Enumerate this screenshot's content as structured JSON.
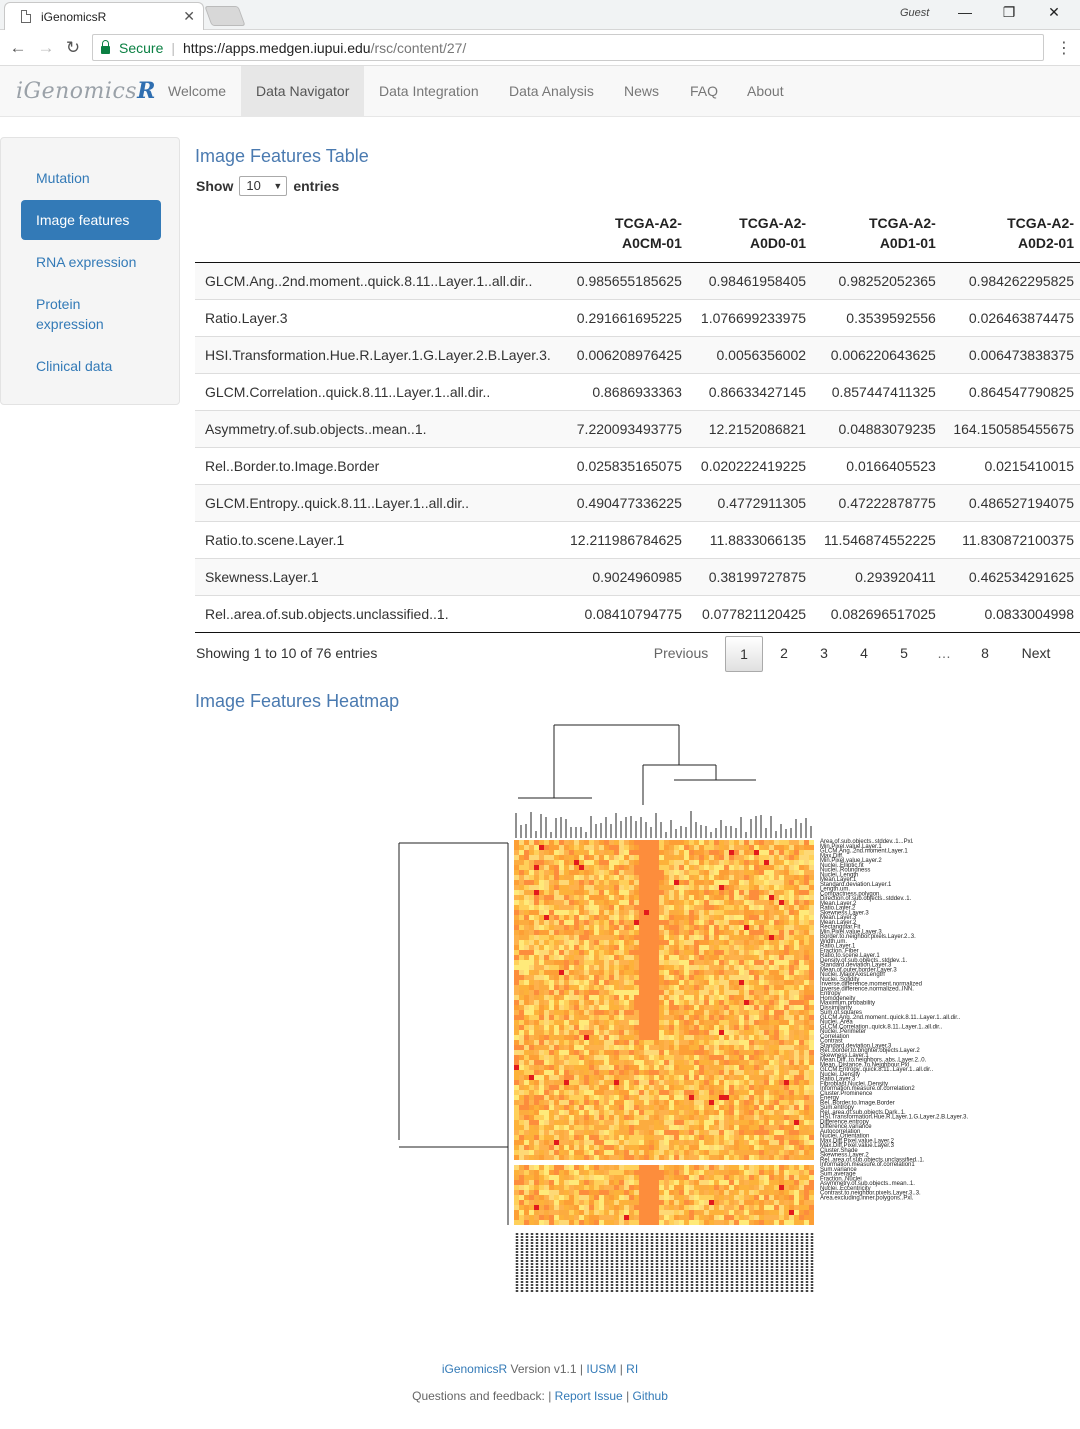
{
  "browser": {
    "tab_title": "iGenomicsR",
    "tab_close": "✕",
    "profile": "Guest",
    "win_min": "—",
    "win_max": "❐",
    "win_close": "✕",
    "back": "←",
    "forward": "→",
    "reload": "↻",
    "secure_label": "Secure",
    "url_host": "https://apps.medgen.iupui.edu",
    "url_path": "/rsc/content/27/",
    "menu": "⋮"
  },
  "navbar": {
    "brand_main": "iGenomics",
    "brand_r": "R",
    "items": [
      "Welcome",
      "Data Navigator",
      "Data Integration",
      "Data Analysis",
      "News",
      "FAQ",
      "About"
    ],
    "active": "Data Navigator"
  },
  "sidebar": {
    "items": [
      "Mutation",
      "Image features",
      "RNA expression",
      "Protein expression",
      "Clinical data"
    ],
    "active": "Image features"
  },
  "table_section": {
    "title": "Image Features Table",
    "show_label": "Show",
    "entries_value": "10",
    "entries_label": "entries",
    "columns": [
      "",
      "TCGA-A2-\nA0CM-01",
      "TCGA-A2-\nA0D0-01",
      "TCGA-A2-\nA0D1-01",
      "TCGA-A2-\nA0D2-01"
    ],
    "rows": [
      [
        "GLCM.Ang..2nd.moment..quick.8.11..Layer.1..all.dir..",
        "0.985655185625",
        "0.98461958405",
        "0.98252052365",
        "0.984262295825"
      ],
      [
        "Ratio.Layer.3",
        "0.291661695225",
        "1.076699233975",
        "0.3539592556",
        "0.026463874475"
      ],
      [
        "HSI.Transformation.Hue.R.Layer.1.G.Layer.2.B.Layer.3.",
        "0.006208976425",
        "0.0056356002",
        "0.006220643625",
        "0.006473838375"
      ],
      [
        "GLCM.Correlation..quick.8.11..Layer.1..all.dir..",
        "0.8686933363",
        "0.86633427145",
        "0.857447411325",
        "0.864547790825"
      ],
      [
        "Asymmetry.of.sub.objects..mean..1.",
        "7.220093493775",
        "12.2152086821",
        "0.04883079235",
        "164.150585455675"
      ],
      [
        "Rel..Border.to.Image.Border",
        "0.025835165075",
        "0.020222419225",
        "0.0166405523",
        "0.0215410015"
      ],
      [
        "GLCM.Entropy..quick.8.11..Layer.1..all.dir..",
        "0.490477336225",
        "0.4772911305",
        "0.47222878775",
        "0.486527194075"
      ],
      [
        "Ratio.to.scene.Layer.1",
        "12.211986784625",
        "11.8833066135",
        "11.546874552225",
        "11.830872100375"
      ],
      [
        "Skewness.Layer.1",
        "0.9024960985",
        "0.38199727875",
        "0.293920411",
        "0.462534291625"
      ],
      [
        "Rel..area.of.sub.objects.unclassified..1.",
        "0.08410794775",
        "0.077821120425",
        "0.082696517025",
        "0.0833004998"
      ]
    ],
    "info": "Showing 1 to 10 of 76 entries",
    "pagination": {
      "previous": "Previous",
      "pages": [
        "1",
        "2",
        "3",
        "4",
        "5",
        "…",
        "8"
      ],
      "next": "Next",
      "current": "1"
    }
  },
  "heatmap_section": {
    "title": "Image Features Heatmap",
    "row_labels": [
      "Area.of.sub.objects..stddev..1...Pxl.",
      "Min.Pixel.value.Layer.1",
      "GLCM.Ang..2nd.moment.Layer.1",
      "Max.Diff.",
      "Min.Pixel.value.Layer.2",
      "Nuclei..Elliptic.fit",
      "Nuclei..Roundness",
      "Nuclei..Length",
      "Mean.Layer.1",
      "Standard.deviation.Layer.1",
      "Length.um.",
      "Compactness.polygon.",
      "Direction.of.sub.objects..stddev..1.",
      "Mean.Layer.2",
      "Ratio.Layer.2",
      "Skewness.Layer.3",
      "Mean.Layer.3",
      "Mean.Layer.2",
      "Rectangular.Fit",
      "Min.Pixel.value.Layer.3",
      "Border.to.neighbor.pixels.Layer.2..3.",
      "Width.um.",
      "Ratio.Layer.1",
      "Fraction..Fiber",
      "Ratio.to.scene.Layer.1",
      "Density.of.sub.objects..stddev..1.",
      "Standard.deviation.Layer.3",
      "Mean.of.outer.border.Layer.3",
      "Nuclei..MajorAxisLength",
      "Nuclei..Solidity",
      "Inverse.difference.moment.normalized",
      "Inverse.difference.normalized..INN.",
      "Entropy",
      "Homogeneity",
      "Maximum.probability",
      "Dissimilarity",
      "Sum.of.squares",
      "GLCM.Ang..2nd.moment..quick.8.11..Layer.1..all.dir..",
      "Nuclei..Area",
      "GLCM.Correlation..quick.8.11..Layer.1..all.dir..",
      "Nuclei..Perimeter",
      "Correlation",
      "Contrast",
      "Standard.deviation.Layer.3",
      "Rel..border.to.brighter.objects.Layer.2",
      "Skewness.Layer.1",
      "Mean.Diff..to.neighbors..abs..Layer.2..0.",
      "Mean..Distance..to.Neighbour.Pxl",
      "GLCM.Entropy..quick.8.11..Layer.1..all.dir..",
      "Nuclei..Density",
      "Ratio.Layer.3",
      "Fibroblast.Nuclei..Density",
      "Information.measure.of.correlation2",
      "Cluster.Prominence",
      "Energy",
      "Rel..Border.to.Image.Border",
      "Sum.entropy",
      "Rel..area.of.sub.objects.Dark..1.",
      "HSI.Transformation.Hue.R.Layer.1.G.Layer.2.B.Layer.3.",
      "Difference.entropy",
      "Difference.variance",
      "Autocorrelation",
      "Nuclei..Orientation",
      "Max.Diff.Pixel.value.Layer.2",
      "Max.Diff.Pixel.value.Layer.3",
      "Cluster.Shade",
      "Skewness.Layer.2",
      "Rel..area.of.sub.objects.unclassified..1.",
      "Information.measure.of.correlation1",
      "Sum.variance",
      "Sum.average",
      "Fraction..Nuclei",
      "Asymmetry.of.sub.objects..mean..1.",
      "Nuclei..Eccentricity",
      "Contrast.to.neighbor.pixels.Layer.3..3.",
      "Area.excluding.inner.polygons..Pxl."
    ]
  },
  "footer": {
    "line1_name": "iGenomicsR",
    "line1_version": "Version v1.1 |",
    "line1_link1": "IUSM",
    "line1_sep": "|",
    "line1_link2": "RI",
    "line2_text": "Questions and feedback: |",
    "line2_link1": "Report Issue",
    "line2_sep": "|",
    "line2_link2": "Github"
  },
  "colors": {
    "accent": "#337ab7",
    "title": "#4a7ab0",
    "heat_low": "#ffffb2",
    "heat_mid": "#fd8d3c",
    "heat_high": "#e31a1c"
  }
}
